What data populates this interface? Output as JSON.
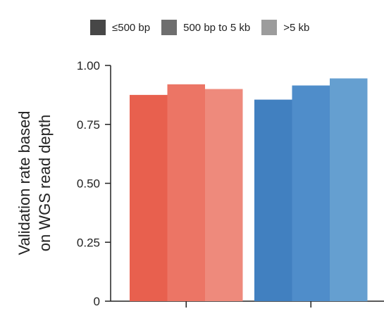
{
  "chart_data": {
    "type": "bar",
    "ylabel_lines": [
      "Validation rate based",
      "on WGS read depth"
    ],
    "ylim": [
      0,
      1
    ],
    "yticks": [
      0,
      0.25,
      0.5,
      0.75,
      1.0
    ],
    "ytick_labels": [
      "0",
      "0.25",
      "0.50",
      "0.75",
      "1.00"
    ],
    "legend": [
      {
        "label": "≤500 bp",
        "color": "#474747"
      },
      {
        "label": "500 bp to 5 kb",
        "color": "#6e6e6e"
      },
      {
        "label": ">5 kb",
        "color": "#9c9c9c"
      }
    ],
    "groups": [
      {
        "values": [
          0.875,
          0.92,
          0.9
        ],
        "colors": [
          "#e8604e",
          "#ec7565",
          "#ee8a7c"
        ]
      },
      {
        "values": [
          0.855,
          0.915,
          0.945
        ],
        "colors": [
          "#4180c0",
          "#4f8dca",
          "#659fd0"
        ]
      }
    ],
    "grid": false,
    "legend_position": "top"
  }
}
